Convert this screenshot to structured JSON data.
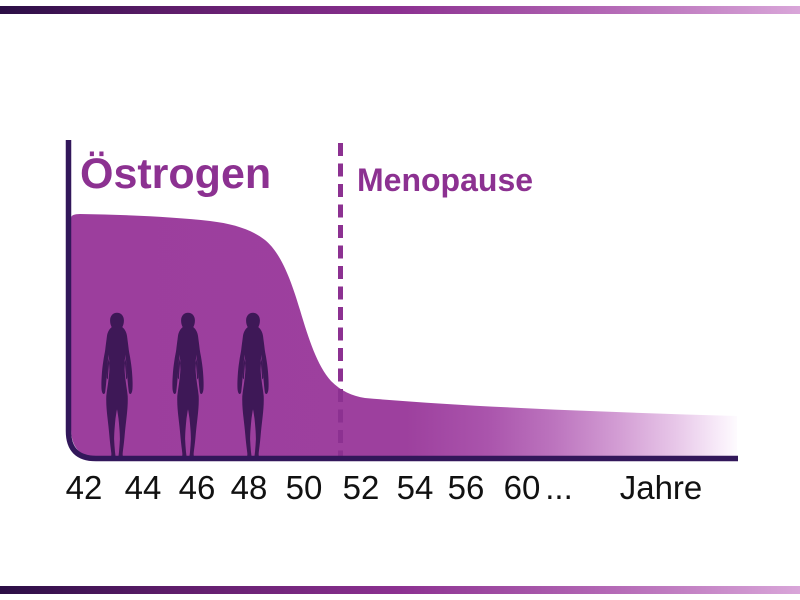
{
  "chart": {
    "y_axis_label": "Östrogen",
    "annotation_label": "Menopause",
    "x_axis_unit": "Jahre",
    "x_labels": [
      {
        "text": "42",
        "x": 84
      },
      {
        "text": "44",
        "x": 143
      },
      {
        "text": "46",
        "x": 197
      },
      {
        "text": "48",
        "x": 249
      },
      {
        "text": "50",
        "x": 304
      },
      {
        "text": "52",
        "x": 361
      },
      {
        "text": "54",
        "x": 415
      },
      {
        "text": "56",
        "x": 466
      },
      {
        "text": "60",
        "x": 522
      },
      {
        "text": "...",
        "x": 559
      },
      {
        "text": "Jahre",
        "x": 661
      }
    ]
  },
  "chart_data": {
    "type": "area",
    "title": "Östrogen",
    "xlabel": "Jahre",
    "ylabel": "",
    "x_tick_labels": [
      "42",
      "44",
      "46",
      "48",
      "50",
      "52",
      "54",
      "56",
      "60 ...",
      "Jahre"
    ],
    "annotation": {
      "label": "Menopause",
      "x_years": 51.3,
      "style": "dashed-vertical-line"
    },
    "series": [
      {
        "name": "Östrogen",
        "x_years": [
          42,
          44,
          46,
          47,
          48,
          49,
          50,
          51,
          52,
          54,
          56,
          60,
          66
        ],
        "y_relative": [
          1.0,
          1.0,
          0.99,
          0.96,
          0.92,
          0.85,
          0.55,
          0.3,
          0.25,
          0.23,
          0.22,
          0.21,
          0.17
        ]
      }
    ],
    "ylim": [
      0,
      1
    ],
    "grid": false,
    "legend_position": "none",
    "notes": "Stylized area chart: estrogen level stays high from age 42, drops steeply around age 49-51, then stays low after menopause; area fades to white toward older ages; three female silhouettes stand in the pre-menopause area."
  },
  "figures": {
    "type": "female-silhouette",
    "count": 3
  },
  "colors": {
    "area_fill": "#9c3e9d",
    "area_fade_end": "#ffffff",
    "axis": "#32175a",
    "accent_purple": "#8c3191",
    "silhouette": "#3e1857",
    "tick_text": "#111111",
    "decor_bar_gradient": [
      "#2b0e45",
      "#8c3191",
      "#d9a6d9"
    ]
  }
}
